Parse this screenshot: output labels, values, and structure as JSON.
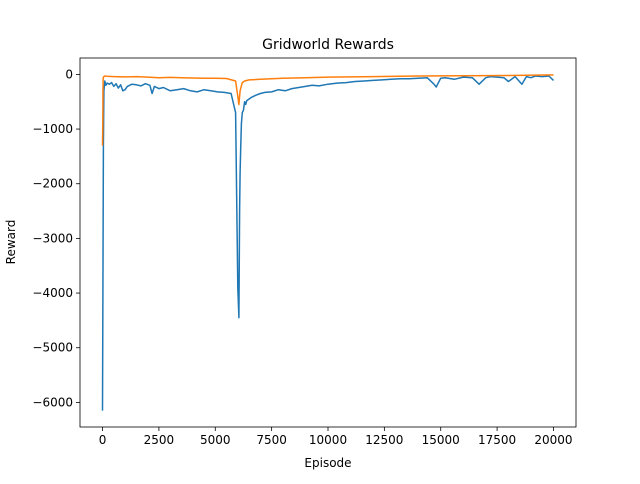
{
  "chart_data": {
    "type": "line",
    "title": "Gridworld Rewards",
    "xlabel": "Episode",
    "ylabel": "Reward",
    "xlim": [
      -1000,
      21000
    ],
    "ylim": [
      -6450,
      300
    ],
    "xticks": [
      0,
      2500,
      5000,
      7500,
      10000,
      12500,
      15000,
      17500,
      20000
    ],
    "xtick_labels": [
      "0",
      "2500",
      "5000",
      "7500",
      "10000",
      "12500",
      "15000",
      "17500",
      "20000"
    ],
    "yticks": [
      0,
      -1000,
      -2000,
      -3000,
      -4000,
      -5000,
      -6000
    ],
    "ytick_labels": [
      "0",
      "−1000",
      "−2000",
      "−3000",
      "−4000",
      "−5000",
      "−6000"
    ],
    "grid": false,
    "legend": "none",
    "series": [
      {
        "color": "#1f77b4",
        "x": [
          0,
          20,
          40,
          60,
          100,
          150,
          200,
          300,
          400,
          500,
          600,
          700,
          800,
          900,
          1000,
          1100,
          1200,
          1300,
          1500,
          1700,
          1900,
          2100,
          2200,
          2300,
          2500,
          2700,
          3000,
          3300,
          3600,
          3900,
          4200,
          4500,
          4800,
          5100,
          5400,
          5700,
          5900,
          6000,
          6050,
          6080,
          6100,
          6130,
          6160,
          6200,
          6250,
          6300,
          6350,
          6400,
          6500,
          6600,
          6700,
          6800,
          7000,
          7200,
          7500,
          7800,
          8100,
          8400,
          8700,
          9000,
          9300,
          9600,
          10000,
          10400,
          10800,
          11200,
          11600,
          12000,
          12400,
          12800,
          13200,
          13600,
          14000,
          14400,
          14700,
          14800,
          15000,
          15200,
          15600,
          16000,
          16400,
          16700,
          17000,
          17200,
          17500,
          17800,
          18000,
          18300,
          18600,
          18800,
          19000,
          19200,
          19500,
          19800,
          20000
        ],
        "y": [
          -6150,
          -3500,
          -1300,
          -300,
          -120,
          -200,
          -160,
          -180,
          -150,
          -220,
          -170,
          -250,
          -190,
          -300,
          -280,
          -220,
          -200,
          -180,
          -190,
          -210,
          -170,
          -200,
          -350,
          -220,
          -260,
          -240,
          -300,
          -280,
          -260,
          -300,
          -320,
          -280,
          -300,
          -320,
          -330,
          -350,
          -700,
          -3900,
          -4450,
          -2500,
          -1800,
          -1350,
          -900,
          -700,
          -650,
          -500,
          -550,
          -480,
          -450,
          -420,
          -400,
          -380,
          -350,
          -330,
          -320,
          -280,
          -300,
          -260,
          -240,
          -220,
          -200,
          -210,
          -180,
          -160,
          -150,
          -130,
          -120,
          -110,
          -100,
          -90,
          -80,
          -80,
          -70,
          -60,
          -180,
          -230,
          -70,
          -60,
          -90,
          -50,
          -60,
          -180,
          -60,
          -40,
          -50,
          -60,
          -130,
          -40,
          -180,
          -40,
          -60,
          -30,
          -40,
          -30,
          -110
        ]
      },
      {
        "color": "#ff7f0e",
        "x": [
          0,
          10,
          20,
          30,
          60,
          100,
          200,
          500,
          1000,
          1500,
          2000,
          2500,
          3000,
          3500,
          4000,
          4500,
          5000,
          5500,
          5900,
          6000,
          6050,
          6100,
          6200,
          6300,
          6500,
          7000,
          7500,
          8000,
          9000,
          10000,
          12000,
          14000,
          16000,
          18000,
          20000
        ],
        "y": [
          -1300,
          -900,
          -250,
          -60,
          -40,
          -30,
          -35,
          -40,
          -45,
          -40,
          -50,
          -60,
          -55,
          -60,
          -65,
          -70,
          -70,
          -75,
          -120,
          -400,
          -550,
          -300,
          -150,
          -120,
          -100,
          -90,
          -80,
          -70,
          -60,
          -50,
          -40,
          -30,
          -25,
          -20,
          -10
        ]
      }
    ]
  }
}
